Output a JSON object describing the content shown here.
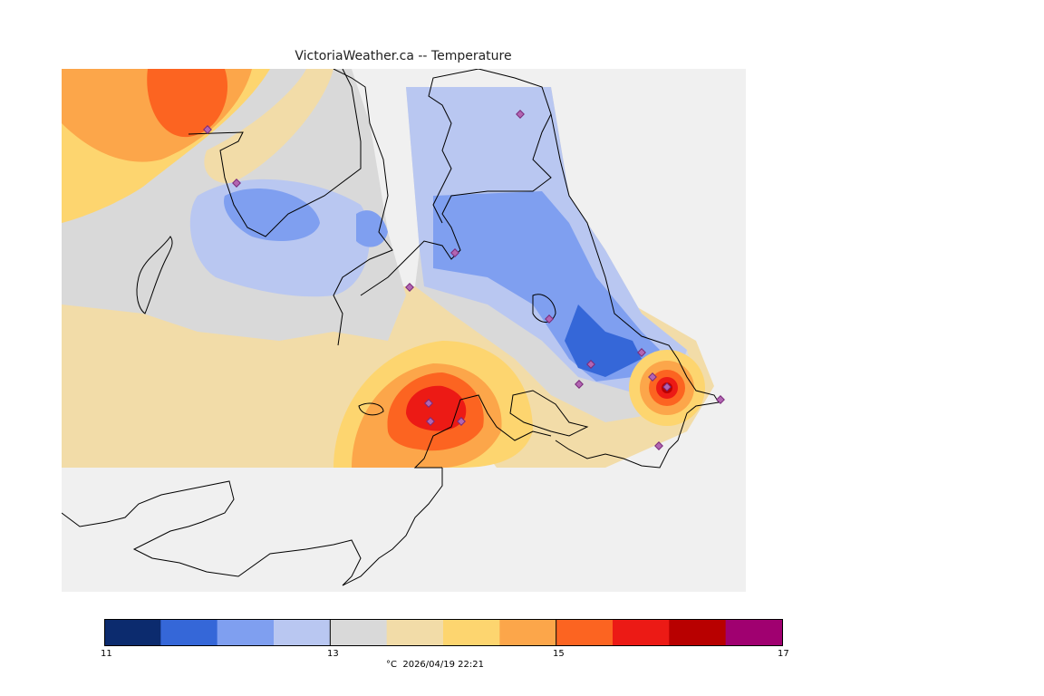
{
  "title": "VictoriaWeather.ca -- Temperature",
  "legend": {
    "unit": "°C",
    "timestamp": "2026/04/19 22:21",
    "range": [
      11,
      17
    ],
    "labels": [
      "11",
      "13",
      "15",
      "17"
    ],
    "colors": [
      "#0c2b6e",
      "#3567d8",
      "#7f9ff0",
      "#b9c7f1",
      "#d9d9d9",
      "#f2dca8",
      "#fdd56f",
      "#fca64a",
      "#fc6421",
      "#ec1a15",
      "#b80000",
      "#a00070"
    ]
  },
  "map": {
    "land_color": "#f0f0f0",
    "coastline_color": "#000000",
    "station_marker": "diamond",
    "station_color": "#b266b2"
  }
}
